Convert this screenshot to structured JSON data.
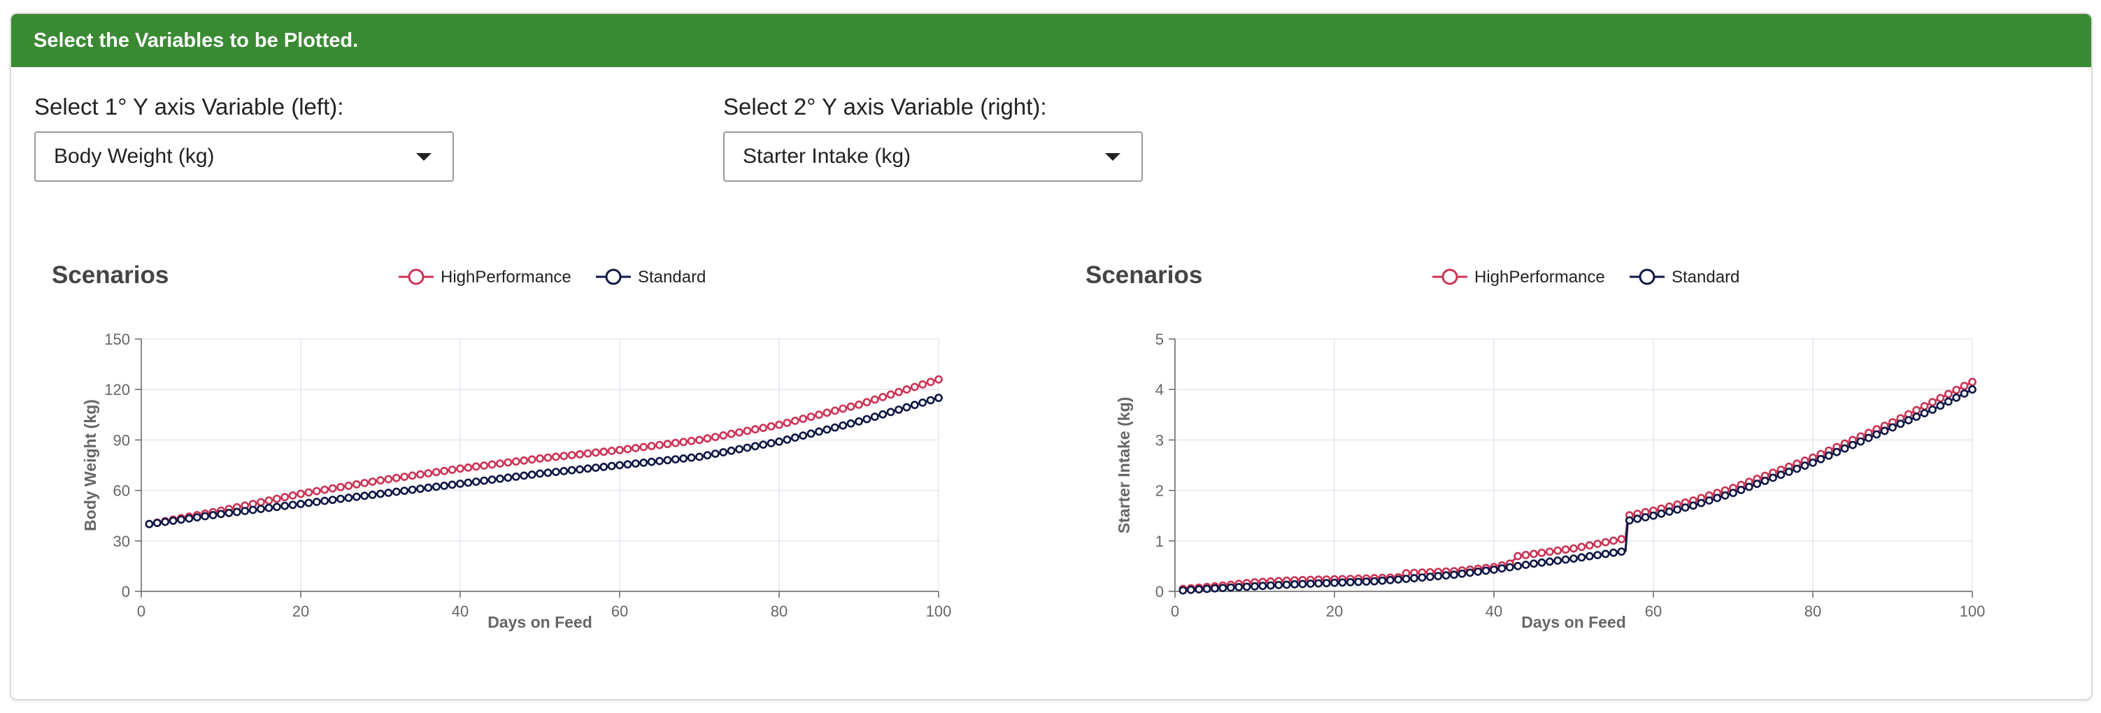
{
  "header": {
    "title": "Select the Variables to be Plotted."
  },
  "controls": {
    "left": {
      "label": "Select 1° Y axis Variable (left):",
      "value": "Body Weight (kg)"
    },
    "right": {
      "label": "Select 2° Y axis Variable (right):",
      "value": "Starter Intake (kg)"
    }
  },
  "colors": {
    "header_bg": "#3a8a33",
    "high_performance": "#cc3355",
    "standard": "#0f1745",
    "grid": "#e5e5ef",
    "axis": "#666666"
  },
  "chart_data": [
    {
      "type": "line",
      "title": "Scenarios",
      "xlabel": "Days on Feed",
      "ylabel": "Body Weight (kg)",
      "xlim": [
        0,
        100
      ],
      "ylim": [
        0,
        150
      ],
      "xticks": [
        "0",
        "20",
        "40",
        "60",
        "80",
        "100"
      ],
      "yticks": [
        "0",
        "30",
        "60",
        "90",
        "120",
        "150"
      ],
      "legend_position": "top-center",
      "grid": true,
      "series": [
        {
          "name": "HighPerformance",
          "color": "#cc3355",
          "points": [
            [
              1,
              40
            ],
            [
              10,
              48
            ],
            [
              20,
              58
            ],
            [
              30,
              66
            ],
            [
              40,
              73
            ],
            [
              50,
              79
            ],
            [
              60,
              84
            ],
            [
              70,
              90
            ],
            [
              80,
              99
            ],
            [
              90,
              111
            ],
            [
              100,
              126
            ]
          ]
        },
        {
          "name": "Standard",
          "color": "#0f1745",
          "points": [
            [
              1,
              40
            ],
            [
              10,
              46
            ],
            [
              20,
              52
            ],
            [
              30,
              58
            ],
            [
              40,
              64
            ],
            [
              50,
              70
            ],
            [
              60,
              75
            ],
            [
              70,
              80
            ],
            [
              80,
              89
            ],
            [
              90,
              101
            ],
            [
              100,
              115
            ]
          ]
        }
      ]
    },
    {
      "type": "line",
      "title": "Scenarios",
      "xlabel": "Days on Feed",
      "ylabel": "Starter Intake (kg)",
      "xlim": [
        0,
        100
      ],
      "ylim": [
        0,
        5
      ],
      "xticks": [
        "0",
        "20",
        "40",
        "60",
        "80",
        "100"
      ],
      "yticks": [
        "0",
        "1",
        "2",
        "3",
        "4",
        "5"
      ],
      "legend_position": "top-center",
      "grid": true,
      "series": [
        {
          "name": "HighPerformance",
          "color": "#cc3355",
          "points": [
            [
              1,
              0.05
            ],
            [
              5,
              0.1
            ],
            [
              10,
              0.18
            ],
            [
              15,
              0.22
            ],
            [
              20,
              0.24
            ],
            [
              25,
              0.26
            ],
            [
              28,
              0.28
            ],
            [
              29,
              0.36
            ],
            [
              35,
              0.4
            ],
            [
              40,
              0.48
            ],
            [
              42,
              0.55
            ],
            [
              43,
              0.7
            ],
            [
              50,
              0.85
            ],
            [
              56.5,
              1.05
            ],
            [
              56.8,
              1.5
            ],
            [
              60,
              1.6
            ],
            [
              65,
              1.8
            ],
            [
              70,
              2.05
            ],
            [
              75,
              2.35
            ],
            [
              80,
              2.65
            ],
            [
              85,
              3.0
            ],
            [
              90,
              3.35
            ],
            [
              95,
              3.75
            ],
            [
              100,
              4.15
            ]
          ]
        },
        {
          "name": "Standard",
          "color": "#0f1745",
          "points": [
            [
              1,
              0.02
            ],
            [
              5,
              0.06
            ],
            [
              10,
              0.1
            ],
            [
              15,
              0.14
            ],
            [
              20,
              0.17
            ],
            [
              25,
              0.2
            ],
            [
              30,
              0.26
            ],
            [
              35,
              0.33
            ],
            [
              40,
              0.43
            ],
            [
              45,
              0.55
            ],
            [
              50,
              0.65
            ],
            [
              56.5,
              0.8
            ],
            [
              56.8,
              1.4
            ],
            [
              60,
              1.5
            ],
            [
              65,
              1.7
            ],
            [
              70,
              1.95
            ],
            [
              75,
              2.25
            ],
            [
              80,
              2.55
            ],
            [
              85,
              2.9
            ],
            [
              90,
              3.25
            ],
            [
              95,
              3.6
            ],
            [
              100,
              4.0
            ]
          ]
        }
      ]
    }
  ]
}
